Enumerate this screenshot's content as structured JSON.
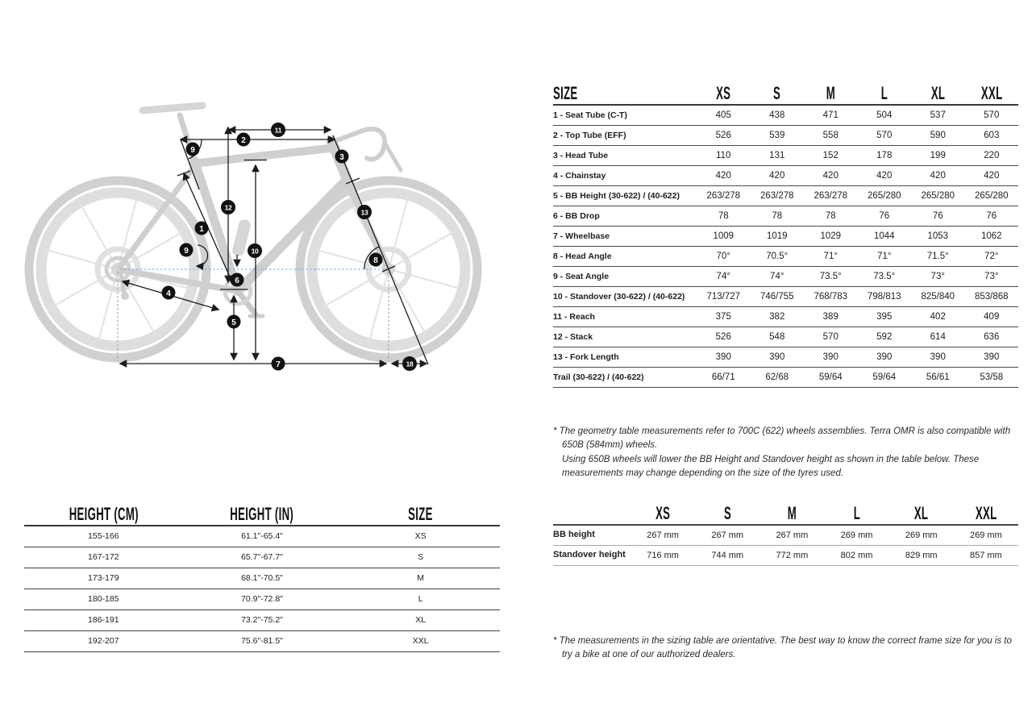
{
  "colors": {
    "badge": "#121212",
    "dotted_axle_line": "#6fa8dc",
    "bike_silhouette": "#d2d2d2",
    "rule_dark": "#3a3a3a",
    "rule_light": "#a9a9a9"
  },
  "geometry_table": {
    "first_col_header": "SIZE",
    "columns": [
      "XS",
      "S",
      "M",
      "L",
      "XL",
      "XXL"
    ],
    "rows": [
      {
        "label": "1 - Seat Tube (C-T)",
        "values": [
          "405",
          "438",
          "471",
          "504",
          "537",
          "570"
        ]
      },
      {
        "label": "2 - Top Tube (EFF)",
        "values": [
          "526",
          "539",
          "558",
          "570",
          "590",
          "603"
        ]
      },
      {
        "label": "3 - Head Tube",
        "values": [
          "110",
          "131",
          "152",
          "178",
          "199",
          "220"
        ]
      },
      {
        "label": "4 - Chainstay",
        "values": [
          "420",
          "420",
          "420",
          "420",
          "420",
          "420"
        ]
      },
      {
        "label": "5 - BB Height (30-622) / (40-622)",
        "values": [
          "263/278",
          "263/278",
          "263/278",
          "265/280",
          "265/280",
          "265/280"
        ]
      },
      {
        "label": "6 - BB Drop",
        "values": [
          "78",
          "78",
          "78",
          "76",
          "76",
          "76"
        ]
      },
      {
        "label": "7 - Wheelbase",
        "values": [
          "1009",
          "1019",
          "1029",
          "1044",
          "1053",
          "1062"
        ]
      },
      {
        "label": "8 - Head Angle",
        "values": [
          "70°",
          "70.5°",
          "71°",
          "71°",
          "71.5°",
          "72°"
        ]
      },
      {
        "label": "9 - Seat Angle",
        "values": [
          "74°",
          "74°",
          "73.5°",
          "73.5°",
          "73°",
          "73°"
        ]
      },
      {
        "label": "10 - Standover (30-622) / (40-622)",
        "values": [
          "713/727",
          "746/755",
          "768/783",
          "798/813",
          "825/840",
          "853/868"
        ]
      },
      {
        "label": "11 - Reach",
        "values": [
          "375",
          "382",
          "389",
          "395",
          "402",
          "409"
        ]
      },
      {
        "label": "12 - Stack",
        "values": [
          "526",
          "548",
          "570",
          "592",
          "614",
          "636"
        ]
      },
      {
        "label": "13 - Fork Length",
        "values": [
          "390",
          "390",
          "390",
          "390",
          "390",
          "390"
        ]
      },
      {
        "label": "Trail (30-622) / (40-622)",
        "values": [
          "66/71",
          "62/68",
          "59/64",
          "59/64",
          "56/61",
          "53/58"
        ]
      }
    ]
  },
  "geometry_footnote": {
    "lead": "* The geometry table measurements refer to 700C (622) wheels assemblies. Terra OMR is also compatible with 650B (584mm) wheels.",
    "rest_line1": "Using 650B wheels will lower the BB Height and Standover height as shown in the table below. These measurements may change depending on the size of the tyres used."
  },
  "sizing_table": {
    "columns": [
      "HEIGHT (CM)",
      "HEIGHT (IN)",
      "SIZE"
    ],
    "rows": [
      {
        "values": [
          "155-166",
          "61.1\"-65.4\"",
          "XS"
        ]
      },
      {
        "values": [
          "167-172",
          "65.7\"-67.7\"",
          "S"
        ]
      },
      {
        "values": [
          "173-179",
          "68.1\"-70.5\"",
          "M"
        ]
      },
      {
        "values": [
          "180-185",
          "70.9\"-72.8\"",
          "L"
        ]
      },
      {
        "values": [
          "186-191",
          "73.2\"-75.2\"",
          "XL"
        ]
      },
      {
        "values": [
          "192-207",
          "75.6\"-81.5\"",
          "XXL"
        ]
      }
    ]
  },
  "wheel_table": {
    "first_col_header": "",
    "columns": [
      "XS",
      "S",
      "M",
      "L",
      "XL",
      "XXL"
    ],
    "rows": [
      {
        "label": "BB height",
        "values": [
          "267 mm",
          "267 mm",
          "267 mm",
          "269 mm",
          "269 mm",
          "269 mm"
        ]
      },
      {
        "label": "Standover height",
        "values": [
          "716 mm",
          "744 mm",
          "772 mm",
          "802 mm",
          "829 mm",
          "857 mm"
        ]
      }
    ]
  },
  "sizing_footnote": {
    "lead": "* The measurements in the sizing table are orientative. The best way to know the correct frame size for you is to try a bike at one of our authorized dealers."
  },
  "diagram": {
    "badges": [
      {
        "n": "1"
      },
      {
        "n": "2"
      },
      {
        "n": "3"
      },
      {
        "n": "4"
      },
      {
        "n": "5"
      },
      {
        "n": "6"
      },
      {
        "n": "7"
      },
      {
        "n": "8"
      },
      {
        "n": "9"
      },
      {
        "n": "9"
      },
      {
        "n": "10"
      },
      {
        "n": "11"
      },
      {
        "n": "12"
      },
      {
        "n": "13"
      },
      {
        "n": "18"
      }
    ]
  }
}
